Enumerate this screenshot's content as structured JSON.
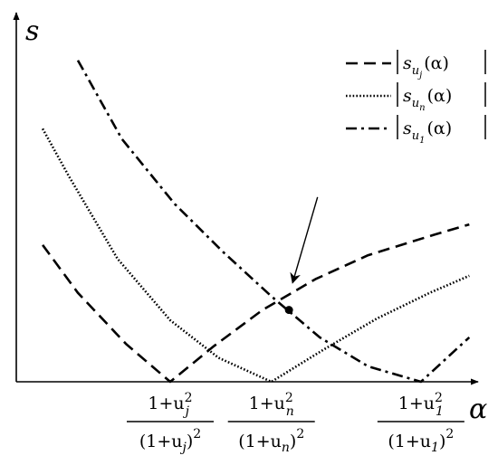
{
  "chart_data": {
    "type": "line",
    "xlabel": "α",
    "ylabel": "s",
    "grid": false,
    "legend_position": "top-right",
    "xlim": [
      0,
      10.5
    ],
    "ylim": [
      0,
      10
    ],
    "tick_labels": [
      {
        "x": 3.5,
        "numerator": "1+u",
        "numerator_sup": "2",
        "numerator_sub": "j",
        "denominator": "(1+u",
        "denominator_sub": "j",
        "denominator_tail": ")",
        "denominator_sup": "2"
      },
      {
        "x": 5.8,
        "numerator": "1+u",
        "numerator_sup": "2",
        "numerator_sub": "n",
        "denominator": "(1+u",
        "denominator_sub": "n",
        "denominator_tail": ")",
        "denominator_sup": "2"
      },
      {
        "x": 9.2,
        "numerator": "1+u",
        "numerator_sup": "2",
        "numerator_sub": "1",
        "denominator": "(1+u",
        "denominator_sub": "1",
        "denominator_tail": ")",
        "denominator_sup": "2"
      }
    ],
    "series": [
      {
        "name": "|s_{u_j}(α)|",
        "legend_base": "s",
        "legend_sub": "u",
        "legend_subsub": "j",
        "legend_arg": "(α)",
        "style": "dashed",
        "x": [
          0.6,
          1.4,
          2.5,
          3.5,
          4.5,
          5.6,
          6.8,
          8.0,
          9.5,
          10.3
        ],
        "y": [
          4.0,
          2.6,
          1.1,
          0.0,
          1.05,
          2.1,
          3.0,
          3.7,
          4.3,
          4.6
        ]
      },
      {
        "name": "|s_{u_n}(α)|",
        "legend_base": "s",
        "legend_sub": "u",
        "legend_subsub": "n",
        "legend_arg": "(α)",
        "style": "dotted",
        "x": [
          0.6,
          1.2,
          2.3,
          3.5,
          4.6,
          5.8,
          7.0,
          8.2,
          9.4,
          10.3
        ],
        "y": [
          7.4,
          6.0,
          3.6,
          1.8,
          0.7,
          0.0,
          0.95,
          1.85,
          2.6,
          3.1
        ]
      },
      {
        "name": "|s_{u_1}(α)|",
        "legend_base": "s",
        "legend_sub": "u",
        "legend_subsub": "1",
        "legend_arg": "(α)",
        "style": "dashdot",
        "x": [
          1.4,
          2.4,
          3.6,
          4.7,
          5.8,
          6.9,
          8.0,
          9.2,
          10.3
        ],
        "y": [
          9.4,
          7.1,
          5.2,
          3.8,
          2.5,
          1.3,
          0.45,
          0.0,
          1.3
        ]
      }
    ],
    "annotation": {
      "type": "arrow",
      "target_x": 6.2,
      "target_y": 2.1,
      "from_x": 6.85,
      "from_y": 5.4
    }
  }
}
